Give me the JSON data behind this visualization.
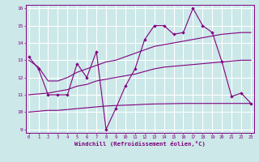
{
  "xlabel": "Windchill (Refroidissement éolien,°C)",
  "bg_color": "#cce8e8",
  "grid_color": "#ffffff",
  "line_color": "#800080",
  "x_ticks": [
    0,
    1,
    2,
    3,
    4,
    5,
    6,
    7,
    8,
    9,
    10,
    11,
    12,
    13,
    14,
    15,
    16,
    17,
    18,
    19,
    20,
    21,
    22,
    23
  ],
  "ylim": [
    8.8,
    16.2
  ],
  "xlim": [
    -0.3,
    23.3
  ],
  "yticks": [
    9,
    10,
    11,
    12,
    13,
    14,
    15,
    16
  ],
  "line1": [
    13.2,
    12.5,
    11.0,
    11.0,
    11.0,
    12.8,
    12.0,
    13.5,
    9.0,
    10.2,
    11.5,
    12.5,
    14.2,
    15.0,
    15.0,
    14.5,
    14.6,
    16.0,
    15.0,
    14.6,
    12.9,
    10.9,
    11.1,
    10.5
  ],
  "line2": [
    13.0,
    12.6,
    11.8,
    11.8,
    12.0,
    12.3,
    12.5,
    12.7,
    12.9,
    13.0,
    13.2,
    13.4,
    13.6,
    13.8,
    13.9,
    14.0,
    14.1,
    14.2,
    14.3,
    14.4,
    14.5,
    14.55,
    14.6,
    14.6
  ],
  "line3": [
    11.0,
    11.05,
    11.1,
    11.2,
    11.3,
    11.5,
    11.6,
    11.8,
    11.9,
    12.0,
    12.1,
    12.2,
    12.35,
    12.5,
    12.6,
    12.65,
    12.7,
    12.75,
    12.8,
    12.85,
    12.9,
    12.95,
    13.0,
    13.0
  ],
  "line4": [
    10.0,
    10.05,
    10.1,
    10.1,
    10.15,
    10.2,
    10.25,
    10.3,
    10.35,
    10.38,
    10.4,
    10.42,
    10.45,
    10.47,
    10.48,
    10.49,
    10.5,
    10.5,
    10.5,
    10.5,
    10.5,
    10.5,
    10.5,
    10.5
  ]
}
